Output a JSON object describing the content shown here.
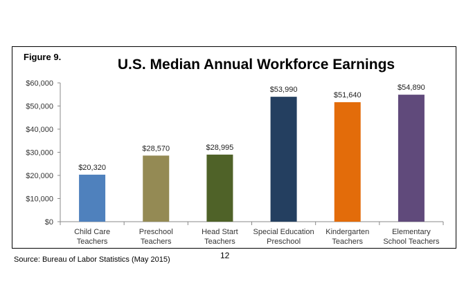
{
  "figure_label": "Figure 9.",
  "source_note": "Source: Bureau of Labor Statistics (May 2015)",
  "page_number": "12",
  "chart_data": {
    "type": "bar",
    "title": "U.S. Median Annual Workforce Earnings",
    "xlabel": "",
    "ylabel": "",
    "ylim": [
      0,
      60000
    ],
    "yticks": [
      0,
      10000,
      20000,
      30000,
      40000,
      50000,
      60000
    ],
    "ytick_labels": [
      "$0",
      "$10,000",
      "$20,000",
      "$30,000",
      "$40,000",
      "$50,000",
      "$60,000"
    ],
    "grid": false,
    "categories": [
      [
        "Child Care",
        "Teachers"
      ],
      [
        "Preschool",
        "Teachers"
      ],
      [
        "Head Start",
        "Teachers"
      ],
      [
        "Special Education",
        "Preschool"
      ],
      [
        "Kindergarten",
        "Teachers"
      ],
      [
        "Elementary",
        "School Teachers"
      ]
    ],
    "values": [
      20320,
      28570,
      28995,
      53990,
      51640,
      54890
    ],
    "value_labels": [
      "$20,320",
      "$28,570",
      "$28,995",
      "$53,990",
      "$51,640",
      "$54,890"
    ],
    "colors": [
      "#4f81bd",
      "#948a54",
      "#4f6228",
      "#243f60",
      "#e36c0a",
      "#604a7b"
    ]
  }
}
